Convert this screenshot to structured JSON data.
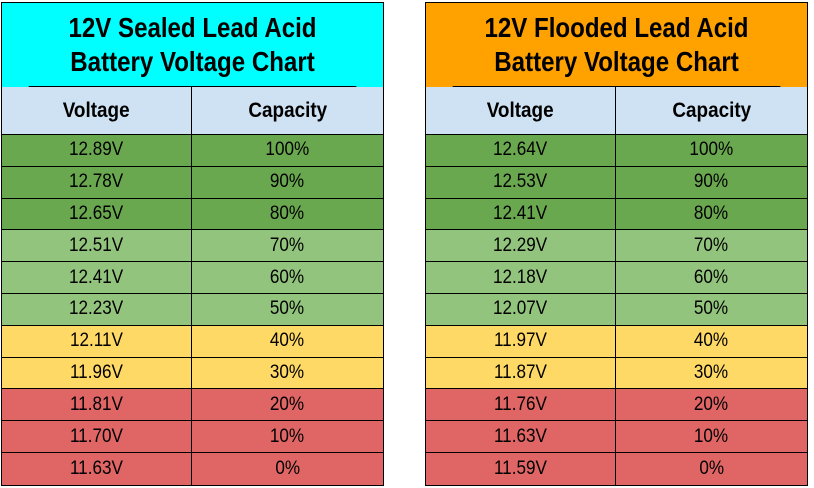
{
  "colors": {
    "sealed_title_bg": "#00ffff",
    "flooded_title_bg": "#ffa200",
    "header_bg": "#cfe2f3",
    "band_dark_green": "#6aa84f",
    "band_light_green": "#93c47d",
    "band_yellow": "#ffd966",
    "band_red": "#e06666"
  },
  "sealed": {
    "title_line1": "12V Sealed Lead Acid",
    "title_line2": "Battery Voltage Chart",
    "col_voltage": "Voltage",
    "col_capacity": "Capacity",
    "rows": [
      {
        "voltage": "12.89V",
        "capacity": "100%",
        "band": "dark_green"
      },
      {
        "voltage": "12.78V",
        "capacity": "90%",
        "band": "dark_green"
      },
      {
        "voltage": "12.65V",
        "capacity": "80%",
        "band": "dark_green"
      },
      {
        "voltage": "12.51V",
        "capacity": "70%",
        "band": "light_green"
      },
      {
        "voltage": "12.41V",
        "capacity": "60%",
        "band": "light_green"
      },
      {
        "voltage": "12.23V",
        "capacity": "50%",
        "band": "light_green"
      },
      {
        "voltage": "12.11V",
        "capacity": "40%",
        "band": "yellow"
      },
      {
        "voltage": "11.96V",
        "capacity": "30%",
        "band": "yellow"
      },
      {
        "voltage": "11.81V",
        "capacity": "20%",
        "band": "red"
      },
      {
        "voltage": "11.70V",
        "capacity": "10%",
        "band": "red"
      },
      {
        "voltage": "11.63V",
        "capacity": "0%",
        "band": "red"
      }
    ]
  },
  "flooded": {
    "title_line1": "12V Flooded Lead Acid",
    "title_line2": "Battery Voltage Chart",
    "col_voltage": "Voltage",
    "col_capacity": "Capacity",
    "rows": [
      {
        "voltage": "12.64V",
        "capacity": "100%",
        "band": "dark_green"
      },
      {
        "voltage": "12.53V",
        "capacity": "90%",
        "band": "dark_green"
      },
      {
        "voltage": "12.41V",
        "capacity": "80%",
        "band": "dark_green"
      },
      {
        "voltage": "12.29V",
        "capacity": "70%",
        "band": "light_green"
      },
      {
        "voltage": "12.18V",
        "capacity": "60%",
        "band": "light_green"
      },
      {
        "voltage": "12.07V",
        "capacity": "50%",
        "band": "light_green"
      },
      {
        "voltage": "11.97V",
        "capacity": "40%",
        "band": "yellow"
      },
      {
        "voltage": "11.87V",
        "capacity": "30%",
        "band": "yellow"
      },
      {
        "voltage": "11.76V",
        "capacity": "20%",
        "band": "red"
      },
      {
        "voltage": "11.63V",
        "capacity": "10%",
        "band": "red"
      },
      {
        "voltage": "11.59V",
        "capacity": "0%",
        "band": "red"
      }
    ]
  }
}
